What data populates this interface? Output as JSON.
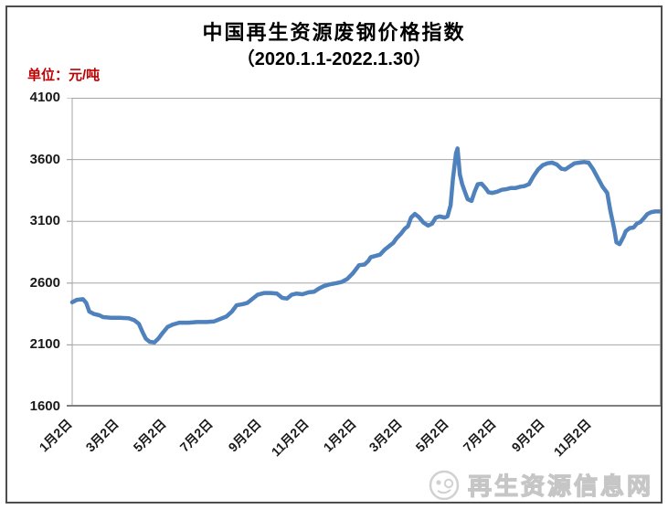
{
  "page": {
    "title": "中国再生资源废钢价格指数",
    "subtitle": "（2020.1.1-2022.1.30）",
    "unit_label": "单位：元/吨",
    "watermark_text": "再生资源信息网"
  },
  "colors": {
    "line": "#4F81BD",
    "grid": "#a6a6a6",
    "axis": "#7f7f7f",
    "unit_label": "#c00000",
    "watermark": "#c4c4c4"
  },
  "chart_data": {
    "type": "line",
    "title": "中国再生资源废钢价格指数",
    "subtitle": "（2020.1.1-2022.1.30）",
    "ylabel": "单位：元/吨",
    "ylim": [
      1600,
      4100
    ],
    "yticks": [
      4100,
      3600,
      3100,
      2600,
      2100,
      1600
    ],
    "grid": true,
    "legend": false,
    "x_axis_note": "日期，自2020年1月2日至2022年1月30日，x为起始日偏移天数",
    "x_total_days": 759,
    "xticks": [
      {
        "day": 0,
        "label": "1月2日"
      },
      {
        "day": 60,
        "label": "3月2日"
      },
      {
        "day": 121,
        "label": "5月2日"
      },
      {
        "day": 182,
        "label": "7月2日"
      },
      {
        "day": 244,
        "label": "9月2日"
      },
      {
        "day": 305,
        "label": "11月2日"
      },
      {
        "day": 366,
        "label": "1月2日"
      },
      {
        "day": 425,
        "label": "3月2日"
      },
      {
        "day": 486,
        "label": "5月2日"
      },
      {
        "day": 547,
        "label": "7月2日"
      },
      {
        "day": 609,
        "label": "9月2日"
      },
      {
        "day": 670,
        "label": "11月2日"
      }
    ],
    "series": [
      {
        "name": "废钢价格指数",
        "color": "#4F81BD",
        "x_days": [
          0,
          6,
          14,
          18,
          22,
          28,
          35,
          40,
          50,
          61,
          73,
          80,
          86,
          91,
          95,
          100,
          106,
          111,
          117,
          123,
          130,
          138,
          150,
          161,
          173,
          183,
          191,
          199,
          206,
          212,
          220,
          226,
          232,
          239,
          248,
          256,
          264,
          271,
          277,
          283,
          289,
          297,
          305,
          312,
          318,
          324,
          332,
          341,
          348,
          355,
          362,
          370,
          377,
          382,
          385,
          391,
          397,
          403,
          409,
          414,
          418,
          424,
          429,
          433,
          437,
          442,
          447,
          453,
          459,
          464,
          469,
          474,
          480,
          484,
          488,
          491,
          495,
          497,
          500,
          503,
          507,
          510,
          515,
          519,
          523,
          528,
          533,
          537,
          542,
          548,
          554,
          560,
          566,
          572,
          578,
          583,
          589,
          595,
          601,
          607,
          613,
          619,
          625,
          631,
          636,
          642,
          648,
          654,
          660,
          666,
          672,
          678,
          684,
          690,
          694,
          699,
          702,
          706,
          711,
          714,
          719,
          724,
          728,
          733,
          738,
          742,
          747,
          752,
          755,
          759
        ],
        "values": [
          2445,
          2465,
          2470,
          2440,
          2370,
          2350,
          2340,
          2325,
          2320,
          2320,
          2315,
          2300,
          2270,
          2200,
          2150,
          2125,
          2120,
          2150,
          2200,
          2245,
          2265,
          2280,
          2280,
          2285,
          2285,
          2290,
          2310,
          2330,
          2370,
          2420,
          2430,
          2440,
          2470,
          2505,
          2520,
          2520,
          2515,
          2480,
          2475,
          2505,
          2515,
          2510,
          2525,
          2530,
          2555,
          2575,
          2590,
          2600,
          2610,
          2635,
          2680,
          2745,
          2750,
          2780,
          2810,
          2820,
          2830,
          2870,
          2900,
          2925,
          2960,
          3000,
          3040,
          3060,
          3130,
          3160,
          3135,
          3090,
          3065,
          3080,
          3130,
          3140,
          3130,
          3140,
          3230,
          3440,
          3650,
          3690,
          3480,
          3400,
          3330,
          3280,
          3265,
          3340,
          3400,
          3405,
          3370,
          3335,
          3330,
          3340,
          3355,
          3360,
          3370,
          3370,
          3380,
          3385,
          3400,
          3465,
          3520,
          3555,
          3570,
          3575,
          3560,
          3525,
          3520,
          3545,
          3570,
          3575,
          3580,
          3575,
          3520,
          3450,
          3380,
          3330,
          3190,
          3040,
          2930,
          2915,
          2975,
          3020,
          3045,
          3050,
          3080,
          3095,
          3130,
          3160,
          3175,
          3180,
          3180,
          3180
        ]
      }
    ]
  }
}
